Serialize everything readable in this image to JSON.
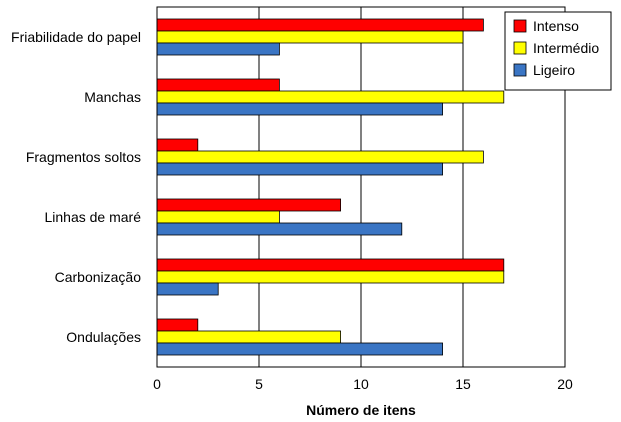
{
  "chart_data": {
    "type": "bar",
    "orientation": "horizontal",
    "categories": [
      "Friabilidade do papel",
      "Manchas",
      "Fragmentos soltos",
      "Linhas de maré",
      "Carbonização",
      "Ondulações"
    ],
    "series": [
      {
        "name": "Intenso",
        "color": "#ff0000",
        "values": [
          16,
          6,
          2,
          9,
          17,
          2
        ]
      },
      {
        "name": "Intermédio",
        "color": "#ffff00",
        "values": [
          15,
          17,
          16,
          6,
          17,
          9
        ]
      },
      {
        "name": "Ligeiro",
        "color": "#3a75c4",
        "values": [
          6,
          14,
          14,
          12,
          3,
          14
        ]
      }
    ],
    "xlabel": "Número de itens",
    "ylabel": "",
    "xlim": [
      0,
      20
    ],
    "xticks": [
      "0",
      "5",
      "10",
      "15",
      "20"
    ],
    "grid": "vertical",
    "legend_position": "top-right"
  }
}
